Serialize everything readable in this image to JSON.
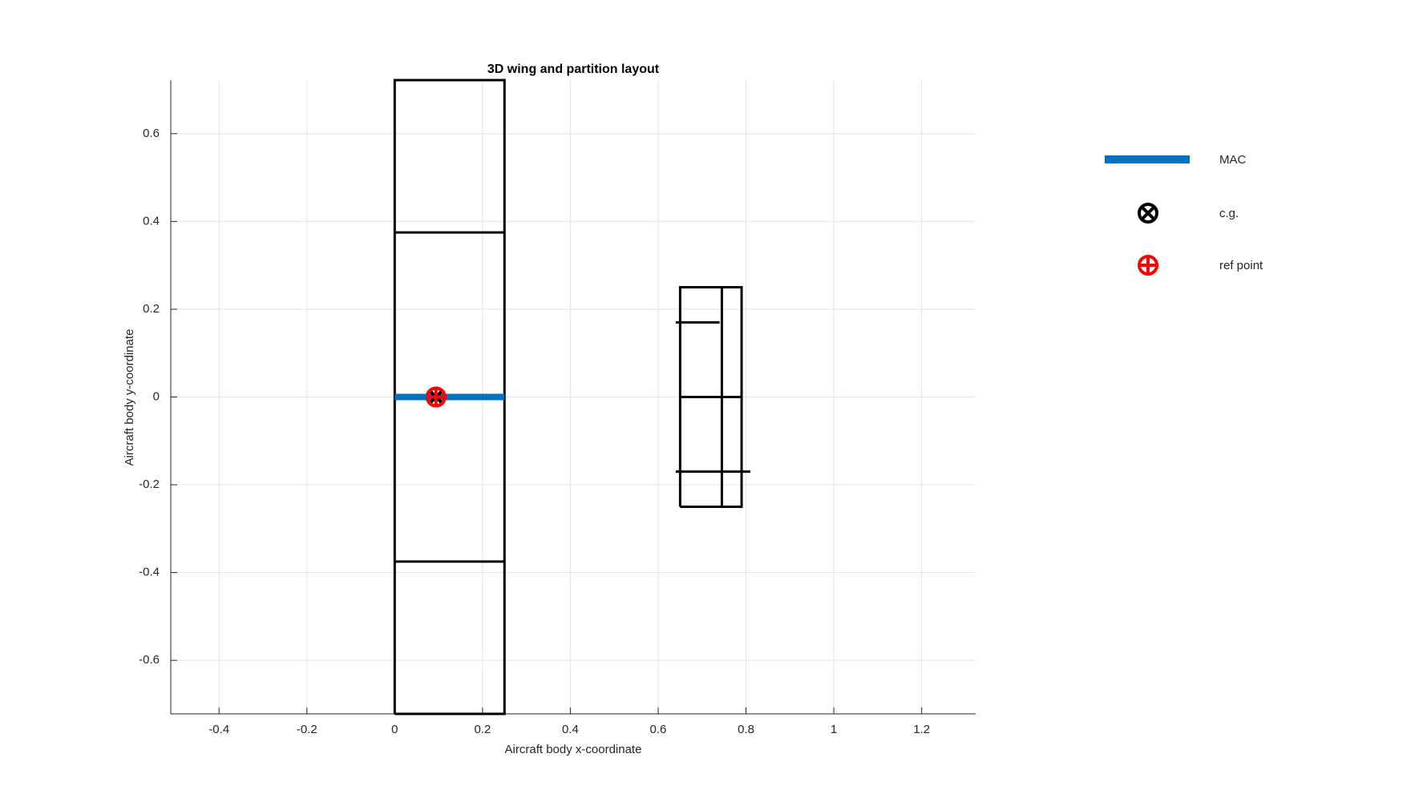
{
  "chart_data": {
    "type": "line",
    "title": "3D wing and partition layout",
    "xlabel": "Aircraft body x-coordinate",
    "ylabel": "Aircraft body y-coordinate",
    "xlim": [
      -0.51,
      1.323
    ],
    "ylim": [
      -0.722,
      0.722
    ],
    "xticks": [
      -0.4,
      -0.2,
      0,
      0.2,
      0.4,
      0.6,
      0.8,
      1,
      1.2
    ],
    "yticks": [
      -0.6,
      -0.4,
      -0.2,
      0,
      0.2,
      0.4,
      0.6
    ],
    "grid": true,
    "legend": "outside-right",
    "series": [
      {
        "color": "#000000",
        "x": [
          0,
          0.25,
          0.25,
          0,
          0,
          null,
          0,
          0.25,
          null,
          0,
          0.25
        ],
        "values": [
          -0.722,
          -0.722,
          0.722,
          0.722,
          -0.722,
          null,
          0.375,
          0.375,
          null,
          -0.375,
          -0.375
        ]
      },
      {
        "color": "#000000",
        "x": [
          0.65,
          0.79,
          0.79,
          0.65,
          0.65,
          null,
          0.745,
          0.745,
          null,
          0.64,
          0.74,
          null,
          0.65,
          0.79,
          null,
          0.64,
          0.81
        ],
        "values": [
          -0.25,
          -0.25,
          0.25,
          0.25,
          -0.25,
          null,
          -0.25,
          0.25,
          null,
          0.17,
          0.17,
          null,
          0,
          0,
          null,
          -0.17,
          -0.17
        ]
      },
      {
        "name": "MAC",
        "color": "#0072bd",
        "x": [
          0,
          0.25
        ],
        "values": [
          0,
          0
        ]
      },
      {
        "name": "c.g.",
        "color": "#000000",
        "marker": "circle-x",
        "x": [
          0.094
        ],
        "values": [
          0
        ]
      },
      {
        "name": "ref point",
        "color": "#ff0000",
        "marker": "circle-plus",
        "x": [
          0.094
        ],
        "values": [
          0
        ]
      }
    ]
  }
}
